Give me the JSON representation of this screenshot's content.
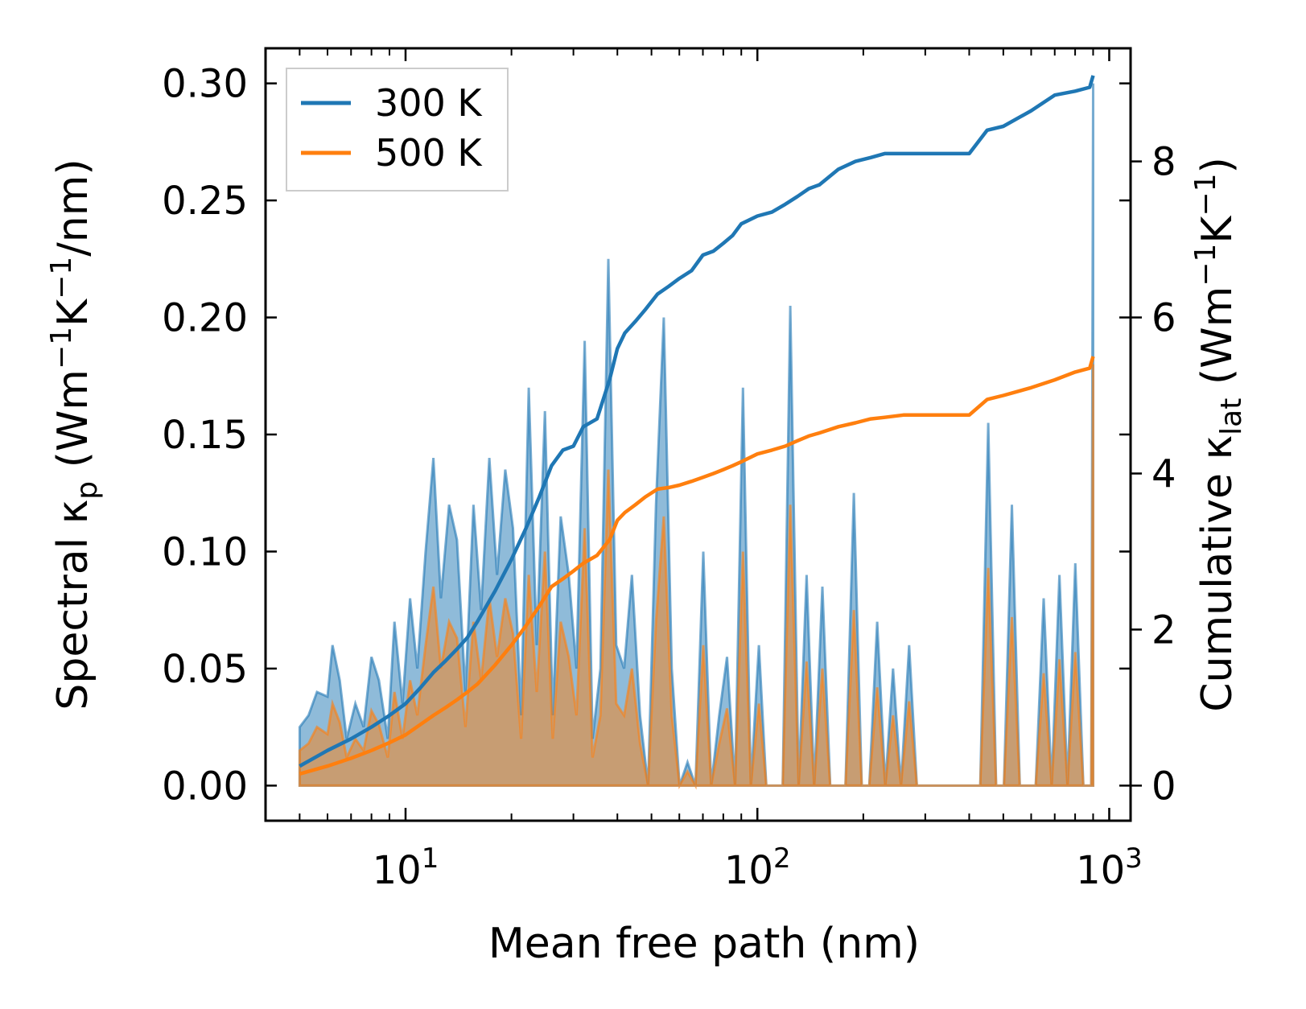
{
  "chart_data": {
    "type": "area",
    "x_scale": "log",
    "xlim": [
      4,
      1150
    ],
    "ylim_left": [
      -0.015,
      0.315
    ],
    "ylim_right": [
      -0.45,
      9.45
    ],
    "x_ticks": [
      {
        "value": 10,
        "base": "10",
        "exp": "1"
      },
      {
        "value": 100,
        "base": "10",
        "exp": "2"
      },
      {
        "value": 1000,
        "base": "10",
        "exp": "3"
      }
    ],
    "y_ticks_left": [
      "0.00",
      "0.05",
      "0.10",
      "0.15",
      "0.20",
      "0.25",
      "0.30"
    ],
    "y_tick_values_left": [
      0,
      0.05,
      0.1,
      0.15,
      0.2,
      0.25,
      0.3
    ],
    "y_ticks_right": [
      "0",
      "2",
      "4",
      "6",
      "8"
    ],
    "y_tick_values_right": [
      0,
      2,
      4,
      6,
      8
    ],
    "xlabel": "Mean free path (nm)",
    "ylabel_left": {
      "prefix": "Spectral κ",
      "sub": "p",
      "mid1": " (Wm",
      "sup1": "−1",
      "mid2": "K",
      "sup2": "−1",
      "suffix": "/nm)"
    },
    "ylabel_right": {
      "prefix": "Cumulative κ",
      "sub": "lat",
      "mid1": " (Wm",
      "sup1": "−1",
      "mid2": "K",
      "sup2": "−1",
      "suffix": ")"
    },
    "legend": {
      "position": "top-left",
      "entries": [
        {
          "label": "300 K",
          "color": "#1f77b4"
        },
        {
          "label": "500 K",
          "color": "#ff7f0e"
        }
      ]
    },
    "colors": {
      "series_300K": "#1f77b4",
      "series_500K": "#ff7f0e",
      "fill_300K": "#1f77b4",
      "fill_500K": "#ff7f0e"
    },
    "spectral_300K": {
      "x": [
        5,
        5.3,
        5.6,
        6.0,
        6.2,
        6.5,
        6.8,
        7.2,
        7.6,
        8.0,
        8.4,
        8.9,
        9.3,
        9.8,
        10.3,
        10.8,
        11.4,
        12.0,
        12.6,
        13.3,
        14.0,
        14.8,
        15.6,
        16.4,
        17.3,
        18.2,
        19.2,
        20.2,
        21.3,
        22.4,
        23.6,
        24.9,
        26.2,
        27.6,
        29.1,
        30.6,
        32.3,
        34.0,
        35.8,
        37.7,
        39.7,
        41.8,
        44.0,
        46.4,
        48.9,
        51.5,
        54.2,
        57.1,
        60.1,
        63.3,
        66.7,
        70.2,
        73.9,
        77.9,
        82.0,
        86.4,
        91.0,
        95.8,
        101,
        106,
        112,
        118,
        124,
        131,
        138,
        145,
        153,
        161,
        169,
        178,
        188,
        198,
        208,
        219,
        231,
        243,
        256,
        270,
        284,
        299,
        315,
        332,
        350,
        368,
        388,
        408,
        430,
        453,
        477,
        502,
        529,
        557,
        587,
        618,
        651,
        686,
        722,
        761,
        801,
        844,
        889,
        900
      ],
      "y": [
        0.025,
        0.03,
        0.04,
        0.038,
        0.06,
        0.045,
        0.02,
        0.035,
        0.025,
        0.055,
        0.045,
        0.02,
        0.07,
        0.035,
        0.08,
        0.05,
        0.1,
        0.14,
        0.08,
        0.12,
        0.105,
        0.04,
        0.12,
        0.075,
        0.14,
        0.09,
        0.135,
        0.11,
        0.03,
        0.17,
        0.06,
        0.16,
        0.03,
        0.115,
        0.09,
        0.05,
        0.19,
        0.02,
        0.05,
        0.225,
        0.06,
        0.05,
        0.09,
        0.03,
        0.0,
        0.12,
        0.2,
        0.05,
        0.0,
        0.01,
        0.0,
        0.1,
        0.0,
        0.03,
        0.055,
        0.0,
        0.17,
        0.0,
        0.06,
        0.0,
        0.0,
        0.0,
        0.205,
        0.0,
        0.09,
        0.0,
        0.085,
        0.0,
        0.0,
        0.0,
        0.125,
        0.0,
        0.0,
        0.07,
        0.0,
        0.05,
        0.0,
        0.06,
        0.0,
        0.0,
        0.0,
        0.0,
        0.0,
        0.0,
        0.0,
        0.0,
        0.0,
        0.155,
        0.0,
        0.0,
        0.12,
        0.0,
        0.0,
        0.0,
        0.08,
        0.0,
        0.09,
        0.0,
        0.095,
        0.0,
        0.0,
        0.3
      ],
      "name": "300 K"
    },
    "spectral_500K": {
      "x": [
        5,
        5.3,
        5.6,
        6.0,
        6.2,
        6.5,
        6.8,
        7.2,
        7.6,
        8.0,
        8.4,
        8.9,
        9.3,
        9.8,
        10.3,
        10.8,
        11.4,
        12.0,
        12.6,
        13.3,
        14.0,
        14.8,
        15.6,
        16.4,
        17.3,
        18.2,
        19.2,
        20.2,
        21.3,
        22.4,
        23.6,
        24.9,
        26.2,
        27.6,
        29.1,
        30.6,
        32.3,
        34.0,
        35.8,
        37.7,
        39.7,
        41.8,
        44.0,
        46.4,
        48.9,
        51.5,
        54.2,
        57.1,
        60.1,
        63.3,
        66.7,
        70.2,
        73.9,
        77.9,
        82.0,
        86.4,
        91.0,
        95.8,
        101,
        106,
        112,
        118,
        124,
        131,
        138,
        145,
        153,
        161,
        169,
        178,
        188,
        198,
        208,
        219,
        231,
        243,
        256,
        270,
        284,
        299,
        315,
        332,
        350,
        368,
        388,
        408,
        430,
        453,
        477,
        502,
        529,
        557,
        587,
        618,
        651,
        686,
        722,
        761,
        801,
        844,
        889,
        900
      ],
      "y": [
        0.015,
        0.018,
        0.025,
        0.022,
        0.035,
        0.027,
        0.012,
        0.02,
        0.015,
        0.032,
        0.026,
        0.012,
        0.04,
        0.02,
        0.045,
        0.03,
        0.06,
        0.085,
        0.05,
        0.07,
        0.063,
        0.025,
        0.07,
        0.045,
        0.08,
        0.055,
        0.08,
        0.065,
        0.02,
        0.09,
        0.04,
        0.1,
        0.02,
        0.07,
        0.055,
        0.03,
        0.11,
        0.012,
        0.03,
        0.135,
        0.035,
        0.03,
        0.05,
        0.018,
        0.0,
        0.07,
        0.115,
        0.03,
        0.0,
        0.006,
        0.0,
        0.06,
        0.0,
        0.018,
        0.033,
        0.0,
        0.1,
        0.0,
        0.035,
        0.0,
        0.0,
        0.0,
        0.12,
        0.0,
        0.053,
        0.0,
        0.05,
        0.0,
        0.0,
        0.0,
        0.075,
        0.0,
        0.0,
        0.042,
        0.0,
        0.03,
        0.0,
        0.036,
        0.0,
        0.0,
        0.0,
        0.0,
        0.0,
        0.0,
        0.0,
        0.0,
        0.0,
        0.093,
        0.0,
        0.0,
        0.072,
        0.0,
        0.0,
        0.0,
        0.048,
        0.0,
        0.054,
        0.0,
        0.057,
        0.0,
        0.0,
        0.18
      ],
      "name": "500 K"
    },
    "cumulative_300K": {
      "x": [
        5,
        6,
        7,
        8,
        9,
        10,
        11,
        12,
        13,
        14,
        15,
        16,
        18,
        20,
        22,
        24,
        26,
        28,
        30,
        32,
        35,
        38,
        40,
        42,
        45,
        48,
        52,
        56,
        60,
        65,
        70,
        75,
        80,
        85,
        90,
        100,
        110,
        120,
        130,
        140,
        150,
        170,
        190,
        210,
        230,
        260,
        300,
        350,
        400,
        450,
        500,
        600,
        700,
        800,
        880,
        900
      ],
      "y": [
        0.25,
        0.45,
        0.6,
        0.75,
        0.9,
        1.05,
        1.25,
        1.45,
        1.6,
        1.75,
        1.9,
        2.1,
        2.5,
        2.9,
        3.3,
        3.7,
        4.1,
        4.3,
        4.35,
        4.6,
        4.7,
        5.2,
        5.6,
        5.8,
        5.95,
        6.1,
        6.3,
        6.4,
        6.5,
        6.6,
        6.8,
        6.85,
        6.95,
        7.05,
        7.2,
        7.3,
        7.35,
        7.45,
        7.55,
        7.65,
        7.7,
        7.9,
        8.0,
        8.05,
        8.1,
        8.1,
        8.1,
        8.1,
        8.1,
        8.4,
        8.45,
        8.65,
        8.85,
        8.9,
        8.95,
        9.1
      ],
      "name": "300 K"
    },
    "cumulative_500K": {
      "x": [
        5,
        6,
        7,
        8,
        9,
        10,
        11,
        12,
        13,
        14,
        15,
        16,
        18,
        20,
        22,
        24,
        26,
        28,
        30,
        32,
        35,
        38,
        40,
        42,
        45,
        48,
        52,
        56,
        60,
        65,
        70,
        75,
        80,
        85,
        90,
        100,
        110,
        120,
        130,
        140,
        150,
        170,
        190,
        210,
        230,
        260,
        300,
        350,
        400,
        450,
        500,
        600,
        700,
        800,
        880,
        900
      ],
      "y": [
        0.15,
        0.25,
        0.35,
        0.45,
        0.55,
        0.65,
        0.78,
        0.9,
        1.0,
        1.1,
        1.2,
        1.3,
        1.55,
        1.8,
        2.05,
        2.3,
        2.55,
        2.65,
        2.75,
        2.85,
        2.95,
        3.15,
        3.4,
        3.5,
        3.6,
        3.7,
        3.8,
        3.82,
        3.85,
        3.9,
        3.95,
        4.0,
        4.05,
        4.1,
        4.15,
        4.25,
        4.3,
        4.35,
        4.42,
        4.48,
        4.52,
        4.6,
        4.65,
        4.7,
        4.72,
        4.75,
        4.75,
        4.75,
        4.75,
        4.95,
        5.0,
        5.1,
        5.2,
        5.3,
        5.35,
        5.5
      ],
      "name": "500 K"
    }
  }
}
